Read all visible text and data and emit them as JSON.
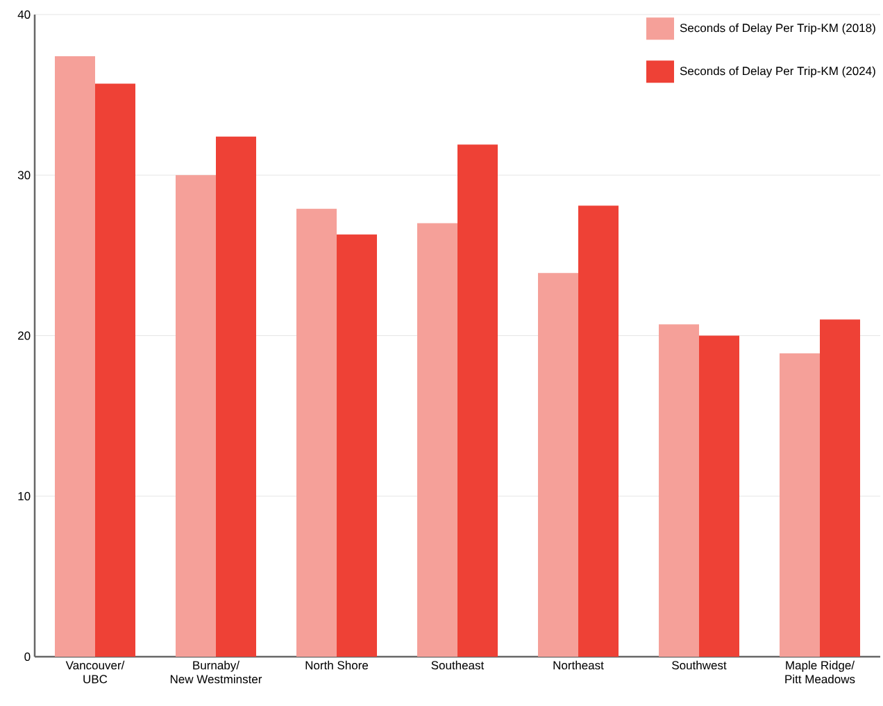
{
  "chart_data": {
    "type": "bar",
    "categories": [
      "Vancouver/\nUBC",
      "Burnaby/\nNew Westminster",
      "North Shore",
      "Southeast",
      "Northeast",
      "Southwest",
      "Maple Ridge/\nPitt Meadows"
    ],
    "series": [
      {
        "name": "Seconds of Delay Per Trip-KM (2018)",
        "color": "#f5a099",
        "values": [
          37.4,
          30.0,
          27.9,
          27.0,
          23.9,
          20.7,
          18.9
        ]
      },
      {
        "name": "Seconds of Delay Per Trip-KM (2024)",
        "color": "#ee4136",
        "values": [
          35.7,
          32.4,
          26.3,
          31.9,
          28.1,
          20.0,
          21.0
        ]
      }
    ],
    "ylim": [
      0,
      40
    ],
    "yticks": [
      0,
      10,
      20,
      30,
      40
    ],
    "grid": "y",
    "legend": "top right"
  }
}
